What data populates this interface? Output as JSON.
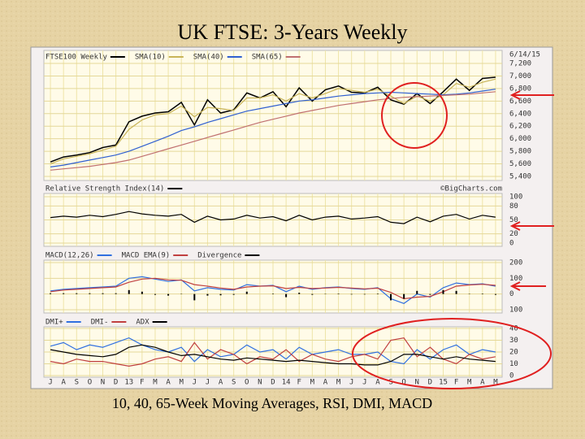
{
  "title": "UK FTSE: 3-Years Weekly",
  "caption": "10, 40, 65-Week Moving Averages, RSI, DMI, MACD",
  "date": "6/14/15",
  "source": "©BigCharts.com",
  "chart_data": [
    {
      "type": "line",
      "series": [
        {
          "name": "FTSE100 Weekly",
          "color": "#000000",
          "values": [
            5630,
            5710,
            5740,
            5780,
            5860,
            5900,
            6270,
            6360,
            6410,
            6430,
            6580,
            6220,
            6620,
            6410,
            6460,
            6730,
            6650,
            6750,
            6510,
            6810,
            6600,
            6780,
            6840,
            6740,
            6730,
            6820,
            6620,
            6550,
            6720,
            6560,
            6750,
            6950,
            6770,
            6960,
            6980
          ]
        },
        {
          "name": "SMA(10)",
          "color": "#c8b458",
          "values": [
            5600,
            5680,
            5720,
            5760,
            5820,
            5880,
            6150,
            6300,
            6380,
            6400,
            6520,
            6350,
            6500,
            6480,
            6450,
            6650,
            6650,
            6700,
            6600,
            6720,
            6650,
            6720,
            6800,
            6770,
            6740,
            6790,
            6680,
            6560,
            6680,
            6600,
            6700,
            6880,
            6820,
            6900,
            6950
          ]
        },
        {
          "name": "SMA(40)",
          "color": "#3060d0",
          "values": [
            5550,
            5580,
            5620,
            5660,
            5700,
            5740,
            5800,
            5880,
            5960,
            6040,
            6130,
            6190,
            6260,
            6320,
            6380,
            6440,
            6480,
            6520,
            6560,
            6600,
            6620,
            6650,
            6680,
            6700,
            6720,
            6730,
            6740,
            6730,
            6720,
            6710,
            6700,
            6710,
            6730,
            6760,
            6790
          ]
        },
        {
          "name": "SMA(65)",
          "color": "#c07070",
          "values": [
            5500,
            5520,
            5540,
            5560,
            5590,
            5620,
            5660,
            5720,
            5780,
            5840,
            5900,
            5960,
            6020,
            6080,
            6140,
            6200,
            6260,
            6310,
            6360,
            6410,
            6450,
            6490,
            6530,
            6560,
            6590,
            6620,
            6640,
            6660,
            6670,
            6680,
            6690,
            6700,
            6710,
            6730,
            6750
          ]
        }
      ],
      "ylim": [
        5400,
        7200
      ],
      "yticks": [
        {
          "value": 7200,
          "label": "7,200"
        },
        {
          "value": 7000,
          "label": "7,000"
        },
        {
          "value": 6800,
          "label": "6,800"
        },
        {
          "value": 6600,
          "label": "6,600"
        },
        {
          "value": 6400,
          "label": "6,400"
        },
        {
          "value": 6200,
          "label": "6,200"
        },
        {
          "value": 6000,
          "label": "6,000"
        },
        {
          "value": 5800,
          "label": "5,800"
        },
        {
          "value": 5600,
          "label": "5,600"
        },
        {
          "value": 5400,
          "label": "5,400"
        }
      ],
      "grid": true
    },
    {
      "type": "line",
      "series": [
        {
          "name": "Relative Strength Index(14)",
          "color": "#000000",
          "values": [
            55,
            58,
            56,
            60,
            57,
            62,
            68,
            63,
            60,
            58,
            62,
            45,
            58,
            50,
            52,
            60,
            54,
            57,
            48,
            60,
            50,
            56,
            58,
            52,
            54,
            57,
            45,
            42,
            56,
            46,
            58,
            62,
            52,
            60,
            56
          ]
        }
      ],
      "ylim": [
        0,
        100
      ],
      "yticks": [
        100,
        80,
        50,
        20,
        0
      ],
      "grid": true
    },
    {
      "type": "line",
      "series": [
        {
          "name": "MACD(12,26)",
          "color": "#3070e0",
          "values": [
            20,
            30,
            35,
            40,
            45,
            50,
            100,
            110,
            95,
            80,
            90,
            20,
            40,
            30,
            25,
            60,
            50,
            55,
            15,
            50,
            30,
            40,
            45,
            35,
            30,
            40,
            -30,
            -60,
            0,
            -20,
            40,
            70,
            60,
            65,
            50
          ]
        },
        {
          "name": "MACD EMA(9)",
          "color": "#c04040",
          "values": [
            15,
            25,
            30,
            35,
            40,
            45,
            75,
            95,
            100,
            90,
            88,
            60,
            50,
            38,
            30,
            45,
            50,
            52,
            35,
            42,
            35,
            38,
            42,
            38,
            33,
            37,
            10,
            -30,
            -20,
            -15,
            15,
            50,
            58,
            62,
            55
          ]
        },
        {
          "name": "Divergence",
          "type": "bar",
          "color": "#000000",
          "values": [
            5,
            5,
            5,
            5,
            5,
            5,
            25,
            15,
            -5,
            -10,
            2,
            -40,
            -10,
            -8,
            -5,
            15,
            0,
            3,
            -20,
            8,
            -5,
            2,
            3,
            -3,
            -3,
            3,
            -40,
            -30,
            20,
            -5,
            25,
            20,
            2,
            3,
            -5
          ]
        }
      ],
      "ylim": [
        -100,
        200
      ],
      "yticks": [
        200,
        100,
        0,
        {
          "value": -100,
          "label": "100"
        }
      ],
      "grid": true
    },
    {
      "type": "line",
      "series": [
        {
          "name": "DMI+",
          "color": "#3070e0",
          "values": [
            25,
            28,
            22,
            26,
            24,
            28,
            32,
            26,
            22,
            20,
            24,
            12,
            22,
            16,
            18,
            26,
            20,
            22,
            14,
            24,
            18,
            20,
            22,
            18,
            18,
            20,
            12,
            10,
            22,
            14,
            22,
            26,
            18,
            22,
            20
          ]
        },
        {
          "name": "DMI-",
          "color": "#c04040",
          "values": [
            12,
            10,
            14,
            12,
            12,
            10,
            8,
            10,
            14,
            16,
            12,
            28,
            14,
            22,
            18,
            10,
            16,
            14,
            22,
            12,
            18,
            14,
            12,
            16,
            18,
            14,
            30,
            32,
            16,
            24,
            14,
            10,
            18,
            14,
            16
          ]
        },
        {
          "name": "ADX",
          "color": "#000000",
          "values": [
            22,
            20,
            18,
            17,
            16,
            18,
            24,
            26,
            24,
            20,
            17,
            18,
            16,
            14,
            13,
            15,
            14,
            13,
            12,
            13,
            12,
            11,
            10,
            10,
            9,
            9,
            12,
            18,
            18,
            16,
            14,
            16,
            14,
            13,
            12
          ]
        }
      ],
      "ylim": [
        0,
        40
      ],
      "yticks": [
        40,
        30,
        20,
        10,
        0
      ],
      "grid": true,
      "categories": [
        "J",
        "A",
        "S",
        "O",
        "N",
        "D",
        "13",
        "F",
        "M",
        "A",
        "M",
        "J",
        "J",
        "A",
        "S",
        "O",
        "N",
        "D",
        "14",
        "F",
        "M",
        "A",
        "M",
        "J",
        "J",
        "A",
        "S",
        "O",
        "N",
        "D",
        "15",
        "F",
        "M",
        "A",
        "M"
      ]
    }
  ]
}
